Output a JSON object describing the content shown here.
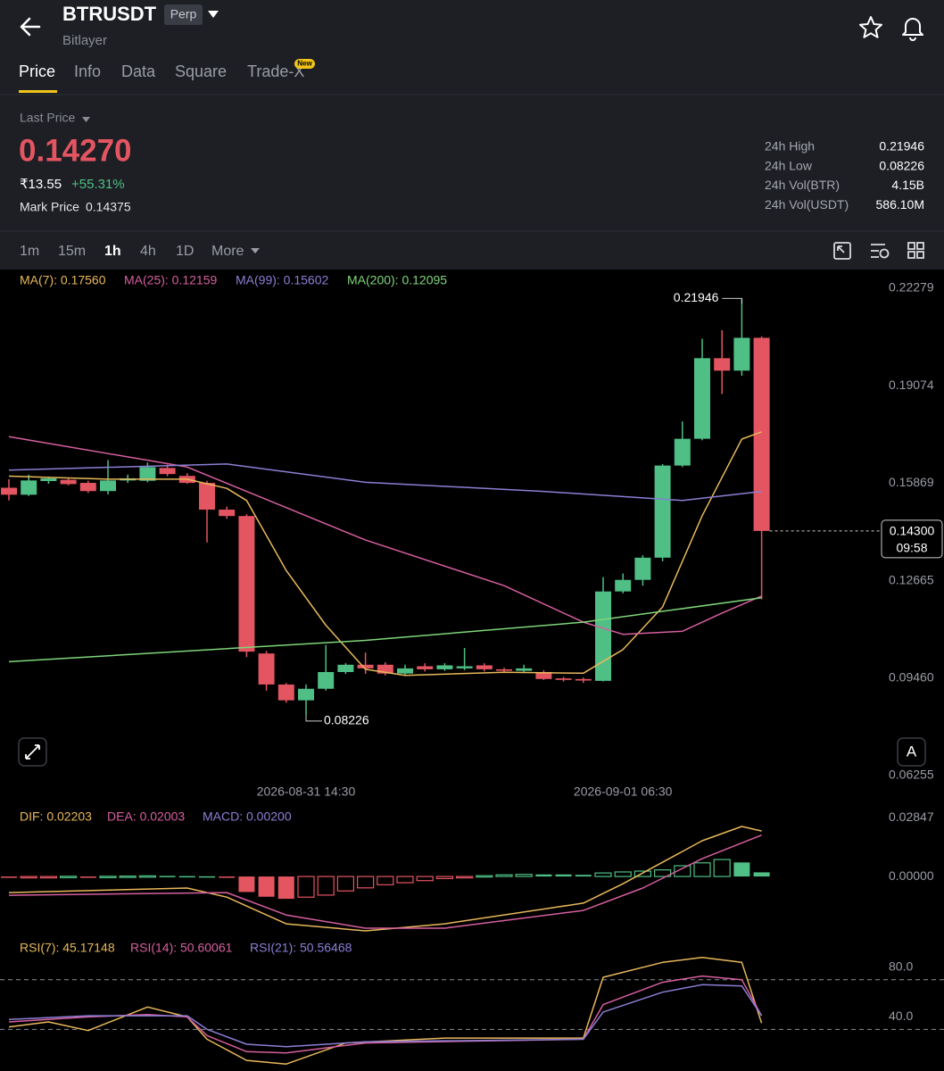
{
  "header": {
    "title": "BTRUSDT",
    "badge": "Perp",
    "subtitle": "Bitlayer"
  },
  "tabs": {
    "items": [
      "Price",
      "Info",
      "Data",
      "Square",
      "Trade-X"
    ],
    "active": 0,
    "new_badge": "New"
  },
  "ticker": {
    "last_price_label": "Last Price",
    "last_price": "0.14270",
    "fiat_price": "₹13.55",
    "change": "+55.31%",
    "mark_price_label": "Mark Price",
    "mark_price": "0.14375",
    "stats": [
      {
        "label": "24h High",
        "value": "0.21946"
      },
      {
        "label": "24h Low",
        "value": "0.08226"
      },
      {
        "label": "24h Vol(BTR)",
        "value": "4.15B"
      },
      {
        "label": "24h Vol(USDT)",
        "value": "586.10M"
      }
    ]
  },
  "intervals": {
    "items": [
      "1m",
      "15m",
      "1h",
      "4h",
      "1D",
      "More"
    ],
    "active": 2
  },
  "chart_buttons": {
    "auto": "A"
  },
  "chart_data": [
    {
      "type": "candlestick",
      "categories": [
        null,
        null,
        null,
        null,
        null,
        null,
        null,
        null,
        null,
        null,
        null,
        null,
        null,
        null,
        null,
        "2026-08-31 14:30",
        null,
        null,
        null,
        null,
        null,
        null,
        null,
        null,
        null,
        null,
        null,
        null,
        null,
        null,
        null,
        "2026-09-01 06:30",
        null,
        null,
        null,
        null,
        null,
        null,
        null
      ],
      "open": [
        0.1572,
        0.1549,
        0.1594,
        0.1598,
        0.1588,
        0.1561,
        0.1596,
        0.1595,
        0.1637,
        0.1611,
        0.1588,
        0.15,
        0.1479,
        0.1027,
        0.0925,
        0.0873,
        0.0911,
        0.0966,
        0.099,
        0.099,
        0.0961,
        0.0985,
        0.0975,
        0.0978,
        0.0988,
        0.0975,
        0.097,
        0.0966,
        0.0945,
        0.0943,
        0.0937,
        0.1231,
        0.1269,
        0.1342,
        0.1645,
        0.1733,
        0.1998,
        0.1957,
        0.2065
      ],
      "high": [
        0.16,
        0.1615,
        0.1608,
        0.1605,
        0.1595,
        0.1663,
        0.1615,
        0.1655,
        0.1648,
        0.162,
        0.1595,
        0.151,
        0.1485,
        0.1035,
        0.093,
        0.0925,
        0.1055,
        0.0995,
        0.103,
        0.0998,
        0.099,
        0.0995,
        0.0995,
        0.1045,
        0.0995,
        0.098,
        0.099,
        0.0972,
        0.095,
        0.0948,
        0.1278,
        0.129,
        0.135,
        0.165,
        0.179,
        0.2062,
        0.209,
        0.21946,
        0.207
      ],
      "low": [
        0.153,
        0.1545,
        0.1585,
        0.158,
        0.1555,
        0.155,
        0.1588,
        0.159,
        0.161,
        0.1585,
        0.1392,
        0.147,
        0.1015,
        0.0905,
        0.0865,
        0.08226,
        0.0905,
        0.096,
        0.096,
        0.0955,
        0.0955,
        0.0968,
        0.097,
        0.0972,
        0.0968,
        0.0965,
        0.0965,
        0.094,
        0.0935,
        0.093,
        0.0935,
        0.1225,
        0.125,
        0.133,
        0.164,
        0.1728,
        0.188,
        0.194,
        0.1205
      ],
      "close": [
        0.1549,
        0.1596,
        0.1603,
        0.1584,
        0.1561,
        0.1596,
        0.1603,
        0.164,
        0.1617,
        0.1588,
        0.15,
        0.1479,
        0.1033,
        0.0925,
        0.0873,
        0.0911,
        0.0966,
        0.099,
        0.0978,
        0.0961,
        0.0978,
        0.0975,
        0.0988,
        0.0985,
        0.0975,
        0.097,
        0.0978,
        0.0943,
        0.094,
        0.0938,
        0.1231,
        0.1269,
        0.1342,
        0.1645,
        0.1733,
        0.1998,
        0.1957,
        0.2065,
        0.143
      ],
      "up_color": "#4fbf85",
      "down_color": "#e35561",
      "ylim": [
        0.06255,
        0.22279
      ],
      "yticks": [
        {
          "value": 0.22279,
          "label": "0.22279"
        },
        {
          "value": 0.19074,
          "label": "0.19074"
        },
        {
          "value": 0.15869,
          "label": "0.15869"
        },
        {
          "value": 0.12665,
          "label": "0.12665"
        },
        {
          "value": 0.0946,
          "label": "0.09460"
        },
        {
          "value": 0.06255,
          "label": "0.06255"
        }
      ],
      "grid": false,
      "series": [
        {
          "name": "MA(7): 0.17560",
          "color": "#e8b85a",
          "x": [
            0,
            5,
            9,
            11,
            12,
            14,
            16,
            18,
            20,
            25,
            29,
            31,
            33,
            35,
            37,
            38
          ],
          "values": [
            0.161,
            0.16,
            0.16,
            0.157,
            0.153,
            0.13,
            0.112,
            0.0975,
            0.0955,
            0.0965,
            0.0962,
            0.104,
            0.118,
            0.148,
            0.1732,
            0.1756
          ]
        },
        {
          "name": "MA(25): 0.12159",
          "color": "#d65fa0",
          "x": [
            0,
            9,
            12,
            18,
            25,
            29,
            31,
            34,
            36,
            38
          ],
          "values": [
            0.174,
            0.164,
            0.156,
            0.14,
            0.125,
            0.113,
            0.109,
            0.11,
            0.116,
            0.1216
          ]
        },
        {
          "name": "MA(99): 0.15602",
          "color": "#8b7fd6",
          "x": [
            0,
            11,
            18,
            27,
            34,
            38
          ],
          "values": [
            0.163,
            0.165,
            0.159,
            0.156,
            0.153,
            0.156
          ]
        },
        {
          "name": "MA(200): 0.12095",
          "color": "#7fd67a",
          "x": [
            0,
            18,
            29,
            38
          ],
          "values": [
            0.1,
            0.107,
            0.113,
            0.121
          ]
        }
      ],
      "annotations": [
        {
          "value": 0.21946,
          "label": "0.21946"
        },
        {
          "value": 0.08226,
          "label": "0.08226"
        }
      ],
      "last_price_tag": {
        "value": 0.143,
        "label": "0.14300",
        "countdown": "09:58"
      }
    },
    {
      "type": "macd",
      "histogram": {
        "name": "MACD: 0.00200",
        "color": "#8b7fd6",
        "values": [
          -0.0004,
          -0.0003,
          -0.0002,
          0.0001,
          -0.0002,
          0.0001,
          0.0002,
          0.0003,
          0.0003,
          0.0002,
          0.0001,
          -0.0003,
          -0.0075,
          -0.0098,
          -0.0108,
          -0.01,
          -0.009,
          -0.007,
          -0.0055,
          -0.004,
          -0.003,
          -0.002,
          -0.001,
          -0.0003,
          0.0004,
          0.0008,
          0.001,
          0.001,
          0.001,
          0.0008,
          0.0017,
          0.0022,
          0.0026,
          0.0032,
          0.0052,
          0.0066,
          0.0082,
          0.0068,
          0.002
        ]
      },
      "up_color": "#4fbf85",
      "down_color": "#e35561",
      "series": [
        {
          "name": "DIF: 0.02203",
          "color": "#e8b85a",
          "x": [
            0,
            9,
            11,
            14,
            18,
            22,
            29,
            31,
            35,
            37,
            38
          ],
          "values": [
            -0.0078,
            -0.0056,
            -0.01,
            -0.0229,
            -0.0263,
            -0.0229,
            -0.0129,
            -0.0035,
            0.0173,
            0.0242,
            0.022
          ]
        },
        {
          "name": "DEA: 0.02003",
          "color": "#d65fa0",
          "x": [
            0,
            11,
            14,
            18,
            22,
            29,
            32,
            35,
            38
          ],
          "values": [
            -0.0091,
            -0.0078,
            -0.0186,
            -0.025,
            -0.025,
            -0.0164,
            -0.0056,
            0.0086,
            0.02
          ]
        }
      ],
      "ylim": [
        -0.0276,
        0.0324
      ],
      "yticks": [
        {
          "value": 0.02847,
          "label": "0.02847"
        },
        {
          "value": 0,
          "label": "0.00000"
        }
      ],
      "grid": false
    },
    {
      "type": "line",
      "series": [
        {
          "name": "RSI(7): 45.17148",
          "color": "#e8b85a",
          "x": [
            0,
            2,
            4,
            7,
            9,
            10,
            12,
            14,
            17,
            22,
            29,
            30,
            33,
            35,
            37,
            38
          ],
          "values": [
            42,
            46,
            39,
            58,
            50,
            32,
            15,
            12,
            29,
            33,
            33,
            82,
            94,
            98,
            94,
            45
          ]
        },
        {
          "name": "RSI(14): 50.60061",
          "color": "#d65fa0",
          "x": [
            0,
            4,
            7,
            9,
            10,
            12,
            14,
            18,
            29,
            30,
            33,
            35,
            37,
            38
          ],
          "values": [
            46,
            50,
            52,
            50,
            35,
            22,
            21,
            29,
            32,
            60,
            78,
            83,
            80,
            51
          ]
        },
        {
          "name": "RSI(21): 50.56468",
          "color": "#8b7fd6",
          "x": [
            0,
            4,
            9,
            10,
            12,
            14,
            18,
            29,
            30,
            33,
            35,
            37,
            38
          ],
          "values": [
            48,
            51,
            51,
            40,
            28,
            26,
            30,
            32,
            54,
            70,
            76,
            75,
            51
          ]
        }
      ],
      "ylim": [
        10,
        100
      ],
      "yticks": [
        {
          "value": 80,
          "label": "80.0"
        },
        {
          "value": 40,
          "label": "40.0"
        }
      ],
      "grid": true
    }
  ]
}
